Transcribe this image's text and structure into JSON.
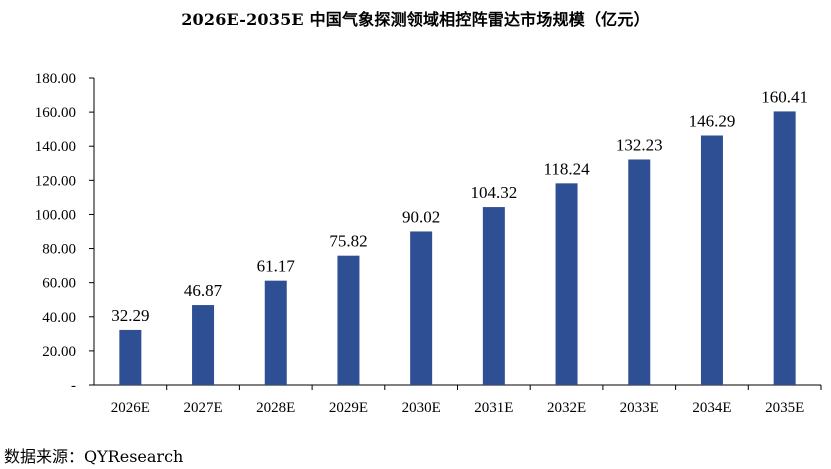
{
  "title": "2026E-2035E 中国气象探测领域相控阵雷达市场规模（亿元）",
  "source": "数据来源：QYResearch",
  "colors": {
    "bar": "#2E4F93",
    "axis": "#000000"
  },
  "chart_data": {
    "type": "bar",
    "title": "2026E-2035E 中国气象探测领域相控阵雷达市场规模（亿元）",
    "categories": [
      "2026E",
      "2027E",
      "2028E",
      "2029E",
      "2030E",
      "2031E",
      "2032E",
      "2033E",
      "2034E",
      "2035E"
    ],
    "values": [
      32.29,
      46.87,
      61.17,
      75.82,
      90.02,
      104.32,
      118.24,
      132.23,
      146.29,
      160.41
    ],
    "value_labels": [
      "32.29",
      "46.87",
      "61.17",
      "75.82",
      "90.02",
      "104.32",
      "118.24",
      "132.23",
      "146.29",
      "160.41"
    ],
    "yticks": [
      0,
      20,
      40,
      60,
      80,
      100,
      120,
      140,
      160,
      180
    ],
    "ytick_labels": [
      "-",
      "20.00",
      "40.00",
      "60.00",
      "80.00",
      "100.00",
      "120.00",
      "140.00",
      "160.00",
      "180.00"
    ],
    "ylim": [
      0,
      180
    ],
    "xlabel": "",
    "ylabel": "",
    "grid": false,
    "legend": "none"
  }
}
